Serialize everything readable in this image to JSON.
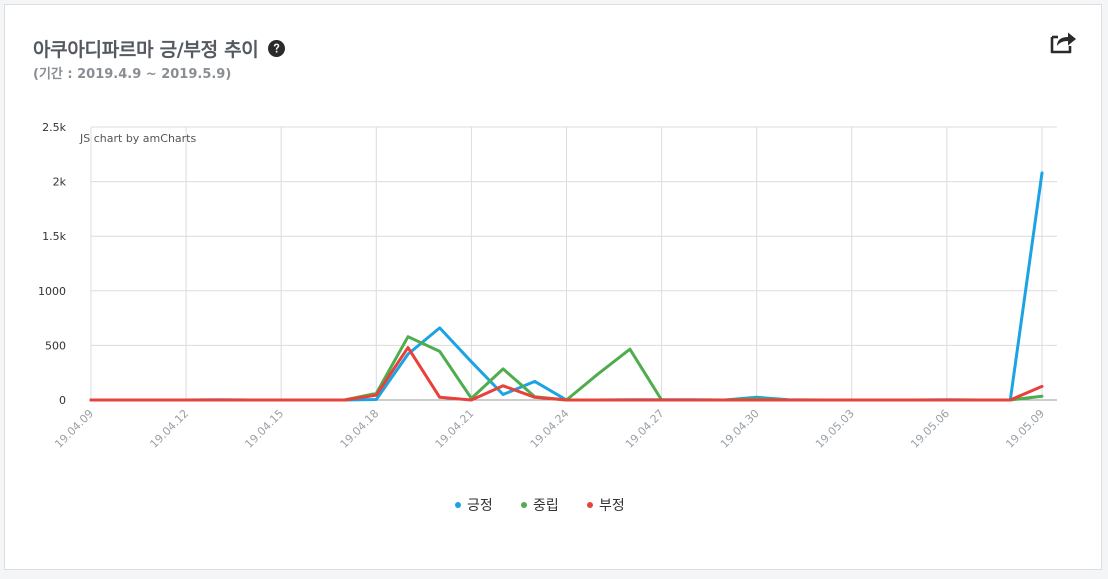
{
  "header": {
    "title": "아쿠아디파르마 긍/부정 추이",
    "subtitle": "(기간 : 2019.4.9 ~ 2019.5.9)"
  },
  "icons": {
    "help": "question-circle-icon",
    "share": "share-icon"
  },
  "chart_data": {
    "type": "line",
    "watermark": "JS chart by amCharts",
    "ylim": [
      0,
      2500
    ],
    "y_ticks": [
      {
        "value": 0,
        "label": "0"
      },
      {
        "value": 500,
        "label": "500"
      },
      {
        "value": 1000,
        "label": "1000"
      },
      {
        "value": 1500,
        "label": "1.5k"
      },
      {
        "value": 2000,
        "label": "2k"
      },
      {
        "value": 2500,
        "label": "2.5k"
      }
    ],
    "x": [
      "19.04.09",
      "19.04.10",
      "19.04.11",
      "19.04.12",
      "19.04.13",
      "19.04.14",
      "19.04.15",
      "19.04.16",
      "19.04.17",
      "19.04.18",
      "19.04.19",
      "19.04.20",
      "19.04.21",
      "19.04.22",
      "19.04.23",
      "19.04.24",
      "19.04.25",
      "19.04.26",
      "19.04.27",
      "19.04.28",
      "19.04.29",
      "19.04.30",
      "19.05.01",
      "19.05.02",
      "19.05.03",
      "19.05.04",
      "19.05.05",
      "19.05.06",
      "19.05.07",
      "19.05.08",
      "19.05.09"
    ],
    "x_tick_labels": [
      "19.04.09",
      "19.04.12",
      "19.04.15",
      "19.04.18",
      "19.04.21",
      "19.04.24",
      "19.04.27",
      "19.04.30",
      "19.05.03",
      "19.05.06",
      "19.05.09"
    ],
    "grid": true,
    "legend_position": "bottom-center",
    "series": [
      {
        "name": "긍정",
        "color": "#1ba3e3",
        "values": [
          0,
          0,
          0,
          0,
          2,
          0,
          0,
          0,
          0,
          5,
          420,
          660,
          350,
          50,
          170,
          0,
          0,
          3,
          2,
          3,
          0,
          25,
          2,
          0,
          0,
          0,
          0,
          3,
          0,
          0,
          2080
        ]
      },
      {
        "name": "중립",
        "color": "#4fad4f",
        "values": [
          0,
          0,
          0,
          0,
          0,
          0,
          0,
          0,
          0,
          60,
          580,
          445,
          15,
          285,
          30,
          0,
          240,
          465,
          0,
          0,
          0,
          10,
          0,
          0,
          0,
          0,
          0,
          0,
          0,
          0,
          35
        ]
      },
      {
        "name": "부정",
        "color": "#e8413a",
        "values": [
          0,
          0,
          0,
          0,
          0,
          0,
          0,
          0,
          0,
          45,
          480,
          25,
          0,
          130,
          25,
          0,
          0,
          0,
          0,
          0,
          0,
          0,
          0,
          0,
          0,
          0,
          0,
          0,
          0,
          0,
          125
        ]
      }
    ]
  }
}
